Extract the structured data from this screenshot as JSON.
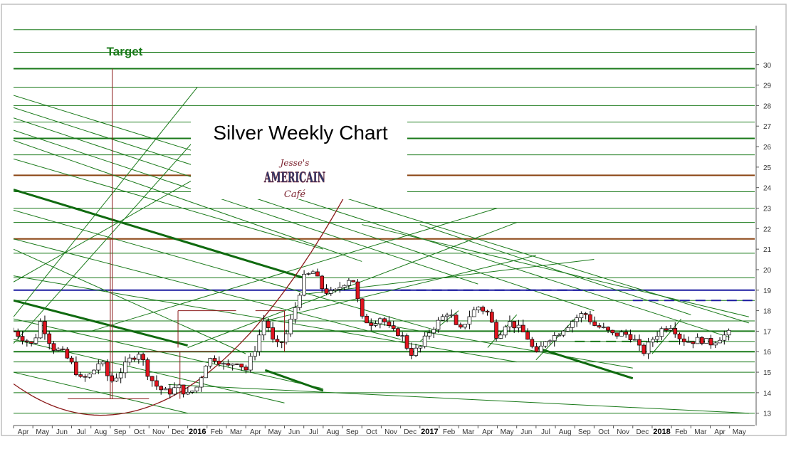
{
  "chart_data": {
    "type": "candlestick",
    "title": "Silver Weekly Chart",
    "annotation": "Target",
    "watermark": {
      "line1": "Jesse's",
      "line2": "AMERICAIN",
      "line3": "Café"
    },
    "y_ticks": [
      13,
      14,
      15,
      16,
      17,
      18,
      19,
      20,
      21,
      22,
      23,
      24,
      25,
      26,
      27,
      28,
      29,
      30
    ],
    "ylim": [
      12.4,
      31.9
    ],
    "x_labels": [
      {
        "t": 0.5,
        "label": "Apr",
        "bold": false
      },
      {
        "t": 1.5,
        "label": "May",
        "bold": false
      },
      {
        "t": 2.5,
        "label": "Jun",
        "bold": false
      },
      {
        "t": 3.5,
        "label": "Jul",
        "bold": false
      },
      {
        "t": 4.5,
        "label": "Aug",
        "bold": false
      },
      {
        "t": 5.5,
        "label": "Sep",
        "bold": false
      },
      {
        "t": 6.5,
        "label": "Oct",
        "bold": false
      },
      {
        "t": 7.5,
        "label": "Nov",
        "bold": false
      },
      {
        "t": 8.5,
        "label": "Dec",
        "bold": false
      },
      {
        "t": 9.5,
        "label": "2016",
        "bold": true
      },
      {
        "t": 10.5,
        "label": "Feb",
        "bold": false
      },
      {
        "t": 11.5,
        "label": "Mar",
        "bold": false
      },
      {
        "t": 12.5,
        "label": "Apr",
        "bold": false
      },
      {
        "t": 13.5,
        "label": "May",
        "bold": false
      },
      {
        "t": 14.5,
        "label": "Jun",
        "bold": false
      },
      {
        "t": 15.5,
        "label": "Jul",
        "bold": false
      },
      {
        "t": 16.5,
        "label": "Aug",
        "bold": false
      },
      {
        "t": 17.5,
        "label": "Sep",
        "bold": false
      },
      {
        "t": 18.5,
        "label": "Oct",
        "bold": false
      },
      {
        "t": 19.5,
        "label": "Nov",
        "bold": false
      },
      {
        "t": 20.5,
        "label": "Dec",
        "bold": false
      },
      {
        "t": 21.5,
        "label": "2017",
        "bold": true
      },
      {
        "t": 22.5,
        "label": "Feb",
        "bold": false
      },
      {
        "t": 23.5,
        "label": "Mar",
        "bold": false
      },
      {
        "t": 24.5,
        "label": "Apr",
        "bold": false
      },
      {
        "t": 25.5,
        "label": "May",
        "bold": false
      },
      {
        "t": 26.5,
        "label": "Jun",
        "bold": false
      },
      {
        "t": 27.5,
        "label": "Jul",
        "bold": false
      },
      {
        "t": 28.5,
        "label": "Aug",
        "bold": false
      },
      {
        "t": 29.5,
        "label": "Sep",
        "bold": false
      },
      {
        "t": 30.5,
        "label": "Oct",
        "bold": false
      },
      {
        "t": 31.5,
        "label": "Nov",
        "bold": false
      },
      {
        "t": 32.5,
        "label": "Dec",
        "bold": false
      },
      {
        "t": 33.5,
        "label": "2018",
        "bold": true
      },
      {
        "t": 34.5,
        "label": "Feb",
        "bold": false
      },
      {
        "t": 35.5,
        "label": "Mar",
        "bold": false
      },
      {
        "t": 36.5,
        "label": "Apr",
        "bold": false
      },
      {
        "t": 37.5,
        "label": "May",
        "bold": false
      }
    ],
    "xlim": [
      0,
      38.3
    ],
    "price_path": [
      [
        0,
        17.0
      ],
      [
        1,
        16.3
      ],
      [
        1.4,
        17.5
      ],
      [
        2,
        16.2
      ],
      [
        2.5,
        16.0
      ],
      [
        3,
        15.4
      ],
      [
        3.5,
        14.6
      ],
      [
        4,
        14.9
      ],
      [
        4.5,
        15.6
      ],
      [
        5,
        14.5
      ],
      [
        5.5,
        15.0
      ],
      [
        6,
        15.6
      ],
      [
        6.5,
        16.0
      ],
      [
        7,
        14.8
      ],
      [
        7.5,
        14.2
      ],
      [
        8,
        14.0
      ],
      [
        8.5,
        14.3
      ],
      [
        9,
        13.9
      ],
      [
        9.5,
        14.3
      ],
      [
        10,
        15.6
      ],
      [
        10.5,
        15.7
      ],
      [
        11,
        15.2
      ],
      [
        11.5,
        15.6
      ],
      [
        12,
        15.1
      ],
      [
        12.5,
        16.2
      ],
      [
        13,
        17.7
      ],
      [
        13.5,
        16.2
      ],
      [
        14,
        16.6
      ],
      [
        14.5,
        18.0
      ],
      [
        15,
        19.6
      ],
      [
        15.5,
        19.9
      ],
      [
        16,
        19.0
      ],
      [
        16.5,
        18.8
      ],
      [
        17,
        19.3
      ],
      [
        17.5,
        19.7
      ],
      [
        18,
        17.6
      ],
      [
        18.5,
        17.4
      ],
      [
        19,
        17.7
      ],
      [
        19.5,
        17.0
      ],
      [
        20,
        16.9
      ],
      [
        20.5,
        15.9
      ],
      [
        21,
        16.2
      ],
      [
        21.5,
        17.0
      ],
      [
        22,
        17.5
      ],
      [
        22.5,
        18.0
      ],
      [
        23,
        16.9
      ],
      [
        23.5,
        17.7
      ],
      [
        24,
        18.2
      ],
      [
        24.5,
        17.9
      ],
      [
        25,
        16.7
      ],
      [
        25.5,
        17.5
      ],
      [
        26,
        17.2
      ],
      [
        26.5,
        16.8
      ],
      [
        27,
        15.8
      ],
      [
        27.5,
        16.6
      ],
      [
        28,
        16.8
      ],
      [
        28.5,
        17.2
      ],
      [
        29,
        17.6
      ],
      [
        29.5,
        17.9
      ],
      [
        30,
        17.3
      ],
      [
        30.5,
        17.1
      ],
      [
        31,
        16.8
      ],
      [
        31.5,
        16.9
      ],
      [
        32,
        16.7
      ],
      [
        32.5,
        15.9
      ],
      [
        33,
        16.6
      ],
      [
        33.5,
        17.1
      ],
      [
        34,
        17.3
      ],
      [
        34.5,
        16.6
      ],
      [
        35,
        16.5
      ],
      [
        35.5,
        16.6
      ],
      [
        36,
        16.4
      ],
      [
        36.5,
        16.7
      ],
      [
        37,
        16.9
      ]
    ],
    "volatility": 0.35,
    "seed": 7,
    "horizontal_lines": [
      {
        "y": 31.7,
        "color": "#1a7a1a",
        "width": 1
      },
      {
        "y": 30.6,
        "color": "#1a7a1a",
        "width": 1
      },
      {
        "y": 29.8,
        "color": "#1a7a1a",
        "width": 2
      },
      {
        "y": 28.9,
        "color": "#1a7a1a",
        "width": 1
      },
      {
        "y": 28.0,
        "color": "#1a7a1a",
        "width": 1
      },
      {
        "y": 27.2,
        "color": "#1a7a1a",
        "width": 1
      },
      {
        "y": 26.4,
        "color": "#1a7a1a",
        "width": 2
      },
      {
        "y": 25.6,
        "color": "#1a7a1a",
        "width": 1
      },
      {
        "y": 24.6,
        "color": "#8b4513",
        "width": 2
      },
      {
        "y": 23.8,
        "color": "#1a7a1a",
        "width": 1
      },
      {
        "y": 23.0,
        "color": "#1a7a1a",
        "width": 1
      },
      {
        "y": 22.3,
        "color": "#1a7a1a",
        "width": 1
      },
      {
        "y": 21.5,
        "color": "#8b4513",
        "width": 2
      },
      {
        "y": 20.8,
        "color": "#1a7a1a",
        "width": 1
      },
      {
        "y": 19.6,
        "color": "#1a7a1a",
        "width": 1
      },
      {
        "y": 19.0,
        "color": "#1a1aa0",
        "width": 2
      },
      {
        "y": 18.5,
        "color": "#1a7a1a",
        "width": 1
      },
      {
        "y": 17.5,
        "color": "#1a7a1a",
        "width": 1
      },
      {
        "y": 17.0,
        "color": "#1a7a1a",
        "width": 2
      },
      {
        "y": 16.5,
        "color": "#1a7a1a",
        "width": 1
      },
      {
        "y": 16.0,
        "color": "#1a7a1a",
        "width": 2
      },
      {
        "y": 15.5,
        "color": "#1a7a1a",
        "width": 1
      },
      {
        "y": 15.0,
        "color": "#1a7a1a",
        "width": 1
      },
      {
        "y": 14.0,
        "color": "#1a7a1a",
        "width": 1
      },
      {
        "y": 13.0,
        "color": "#1a7a1a",
        "width": 1
      }
    ],
    "trend_lines": [
      {
        "p1": [
          0,
          28.5
        ],
        "p2": [
          38,
          17.4
        ],
        "color": "#1a7a1a",
        "width": 1
      },
      {
        "p1": [
          0,
          27.9
        ],
        "p2": [
          37,
          16.7
        ],
        "color": "#1a7a1a",
        "width": 1
      },
      {
        "p1": [
          0,
          27.4
        ],
        "p2": [
          30,
          18.0
        ],
        "color": "#1a7a1a",
        "width": 1
      },
      {
        "p1": [
          0,
          26.8
        ],
        "p2": [
          24,
          19.3
        ],
        "color": "#1a7a1a",
        "width": 1
      },
      {
        "p1": [
          0,
          26.3
        ],
        "p2": [
          18,
          20.4
        ],
        "color": "#1a7a1a",
        "width": 1
      },
      {
        "p1": [
          0,
          25.4
        ],
        "p2": [
          16,
          21.0
        ],
        "color": "#1a7a1a",
        "width": 1
      },
      {
        "p1": [
          0,
          23.9
        ],
        "p2": [
          15,
          19.6
        ],
        "color": "#0f6a0f",
        "width": 3
      },
      {
        "p1": [
          0,
          22.9
        ],
        "p2": [
          22,
          17.0
        ],
        "color": "#1a7a1a",
        "width": 1
      },
      {
        "p1": [
          0,
          21.0
        ],
        "p2": [
          12,
          15.9
        ],
        "color": "#1a7a1a",
        "width": 1
      },
      {
        "p1": [
          0,
          18.5
        ],
        "p2": [
          9,
          16.3
        ],
        "color": "#0f6a0f",
        "width": 3
      },
      {
        "p1": [
          0,
          17.6
        ],
        "p2": [
          16,
          14.2
        ],
        "color": "#1a7a1a",
        "width": 1
      },
      {
        "p1": [
          0,
          16.6
        ],
        "p2": [
          14,
          13.5
        ],
        "color": "#1a7a1a",
        "width": 1
      },
      {
        "p1": [
          0,
          15.0
        ],
        "p2": [
          9,
          13.0
        ],
        "color": "#1a7a1a",
        "width": 1
      },
      {
        "p1": [
          18,
          22.2
        ],
        "p2": [
          38,
          17.7
        ],
        "color": "#1a7a1a",
        "width": 1
      },
      {
        "p1": [
          21,
          22.2
        ],
        "p2": [
          35,
          17.8
        ],
        "color": "#1a7a1a",
        "width": 1
      },
      {
        "p1": [
          18,
          17.5
        ],
        "p2": [
          32,
          15.2
        ],
        "color": "#1a7a1a",
        "width": 1
      },
      {
        "p1": [
          27,
          16.2
        ],
        "p2": [
          32,
          14.7
        ],
        "color": "#0f6a0f",
        "width": 3
      },
      {
        "p1": [
          13,
          15.1
        ],
        "p2": [
          16,
          14.1
        ],
        "color": "#0f6a0f",
        "width": 3
      },
      {
        "p1": [
          8,
          14.4
        ],
        "p2": [
          38,
          13.0
        ],
        "color": "#1a7a1a",
        "width": 1
      },
      {
        "p1": [
          0,
          19.7
        ],
        "p2": [
          26,
          15.5
        ],
        "color": "#1a7a1a",
        "width": 1
      },
      {
        "p1": [
          0,
          21.5
        ],
        "p2": [
          20,
          16.6
        ],
        "color": "#1a7a1a",
        "width": 1
      },
      {
        "p1": [
          0,
          16.4
        ],
        "p2": [
          10,
          27.0
        ],
        "color": "#1a7a1a",
        "width": 1
      },
      {
        "p1": [
          0,
          17.7
        ],
        "p2": [
          9.5,
          28.9
        ],
        "color": "#1a7a1a",
        "width": 1
      },
      {
        "p1": [
          0,
          19.4
        ],
        "p2": [
          9.5,
          24.5
        ],
        "color": "#1a7a1a",
        "width": 1
      },
      {
        "p1": [
          4,
          17.0
        ],
        "p2": [
          25,
          23.0
        ],
        "color": "#1a7a1a",
        "width": 1
      },
      {
        "p1": [
          9,
          16.2
        ],
        "p2": [
          26,
          22.3
        ],
        "color": "#1a7a1a",
        "width": 1
      },
      {
        "p1": [
          13,
          17.5
        ],
        "p2": [
          27,
          20.7
        ],
        "color": "#1a7a1a",
        "width": 1
      },
      {
        "p1": [
          15,
          18.8
        ],
        "p2": [
          30,
          20.5
        ],
        "color": "#1a7a1a",
        "width": 1
      },
      {
        "p1": [
          21,
          16.5
        ],
        "p2": [
          23,
          18.0
        ],
        "color": "#1a7a1a",
        "width": 1
      },
      {
        "p1": [
          24.5,
          16.2
        ],
        "p2": [
          26,
          17.8
        ],
        "color": "#1a7a1a",
        "width": 1
      },
      {
        "p1": [
          27,
          15.6
        ],
        "p2": [
          29,
          17.6
        ],
        "color": "#1a7a1a",
        "width": 1
      },
      {
        "p1": [
          33,
          15.9
        ],
        "p2": [
          34.5,
          17.6
        ],
        "color": "#1a7a1a",
        "width": 1
      }
    ],
    "dashed_segments": [
      {
        "p1": [
          32,
          18.5
        ],
        "p2": [
          38.3,
          18.5
        ],
        "color": "#1a1aa0"
      },
      {
        "p1": [
          20,
          19.0
        ],
        "p2": [
          30,
          19.0
        ],
        "color": "#1a1aa0"
      },
      {
        "p1": [
          29,
          16.5
        ],
        "p2": [
          36,
          16.5
        ],
        "color": "#1a7a1a"
      }
    ],
    "cup_curve": {
      "center": [
        4.5,
        12.9
      ],
      "rx": 9.7,
      "ry": 4.0,
      "x_end": 19.2,
      "color": "#8b1a1a"
    },
    "target_line": {
      "x": 5.1,
      "y_top": 29.8,
      "y_bottom": 13.7,
      "color": "#8b1a1a"
    },
    "brown_marks": [
      {
        "type": "h",
        "x1": 2.8,
        "x2": 7.0,
        "y": 13.7
      },
      {
        "type": "v",
        "x": 5.0,
        "y1": 13.7,
        "y2": 21.5
      },
      {
        "type": "h",
        "x1": 6.8,
        "x2": 10.5,
        "y": 16.0
      },
      {
        "type": "v",
        "x": 8.6,
        "y1": 13.7,
        "y2": 16.0
      },
      {
        "type": "h",
        "x1": 8.5,
        "x2": 11.5,
        "y": 18.0
      },
      {
        "type": "v",
        "x": 8.5,
        "y1": 16.2,
        "y2": 18.0
      },
      {
        "type": "h",
        "x1": 12.5,
        "x2": 14.0,
        "y": 18.0
      },
      {
        "type": "v",
        "x": 14.0,
        "y1": 16.0,
        "y2": 18.0
      }
    ],
    "colors": {
      "up_fill": "#ffffff",
      "down_fill": "#e0141e",
      "candle_edge": "#000000",
      "axis": "#555555",
      "frame": "#bfbfbf"
    }
  }
}
